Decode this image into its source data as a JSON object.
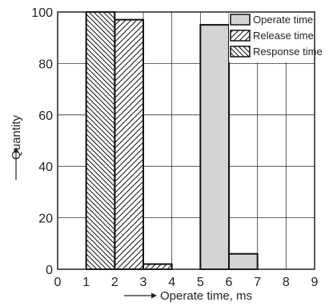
{
  "chart_data": {
    "type": "bar",
    "title": "",
    "xlabel": "Operate time, ms",
    "ylabel": "Quantity",
    "xlim": [
      0,
      9
    ],
    "ylim": [
      0,
      100
    ],
    "x_ticks": [
      "0",
      "1",
      "2",
      "3",
      "4",
      "5",
      "6",
      "7",
      "8",
      "9"
    ],
    "y_ticks": [
      "0",
      "20",
      "40",
      "60",
      "80",
      "100"
    ],
    "grid": true,
    "legend_position": "top-right",
    "series": [
      {
        "name": "Operate time",
        "fill": "#d4d4d4",
        "pattern": "solid",
        "bins": [
          {
            "x0": 5,
            "x1": 6,
            "value": 95
          },
          {
            "x0": 6,
            "x1": 7,
            "value": 6
          }
        ]
      },
      {
        "name": "Release time",
        "fill": "#ffffff",
        "pattern": "forward-diagonal",
        "bins": [
          {
            "x0": 2,
            "x1": 3,
            "value": 97
          },
          {
            "x0": 3,
            "x1": 4,
            "value": 2
          }
        ]
      },
      {
        "name": "Response time",
        "fill": "#ffffff",
        "pattern": "back-diagonal",
        "bins": [
          {
            "x0": 1,
            "x1": 2,
            "value": 100
          }
        ]
      }
    ]
  }
}
